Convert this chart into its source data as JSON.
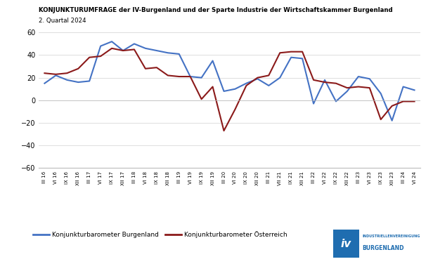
{
  "title": "KONJUNKTURUMFRAGE der IV-Burgenland und der Sparte Industrie der Wirtschaftskammer Burgenland",
  "subtitle": "2. Quartal 2024",
  "ylim": [
    -60,
    60
  ],
  "yticks": [
    -60,
    -40,
    -20,
    0,
    20,
    40,
    60
  ],
  "legend1": "Konjunkturbarometer Burgenland",
  "legend2": "Konjunkturbarometer Österreich",
  "color_burgenland": "#4472C4",
  "color_oesterreich": "#8B1A1A",
  "background_color": "#FFFFFF",
  "x_labels": [
    "III 16",
    "VI 16",
    "IX 16",
    "XII 16",
    "III 17",
    "VI 17",
    "IX 17",
    "XII 17",
    "III 18",
    "VI 18",
    "IX 18",
    "XII 18",
    "III 19",
    "VI 19",
    "IX 19",
    "XII 19",
    "III 20",
    "VI 20",
    "IX 20",
    "XII 20",
    "III 21",
    "VII 21",
    "IX 21",
    "XII 21",
    "III 22",
    "VI 22",
    "IX 22",
    "XII 22",
    "III 23",
    "VI 23",
    "IX 23",
    "XII 23",
    "III 24",
    "VI 24"
  ],
  "burgenland": [
    15,
    22,
    18,
    16,
    17,
    48,
    52,
    44,
    50,
    46,
    44,
    42,
    41,
    21,
    20,
    35,
    8,
    10,
    15,
    19,
    13,
    20,
    38,
    37,
    -3,
    18,
    -1,
    8,
    21,
    19,
    6,
    -18,
    12,
    9
  ],
  "oesterreich": [
    24,
    23,
    24,
    28,
    38,
    39,
    46,
    44,
    45,
    28,
    29,
    22,
    21,
    21,
    1,
    12,
    -27,
    -8,
    13,
    20,
    22,
    42,
    43,
    43,
    18,
    16,
    15,
    11,
    12,
    11,
    -17,
    -5,
    -1,
    -1
  ]
}
